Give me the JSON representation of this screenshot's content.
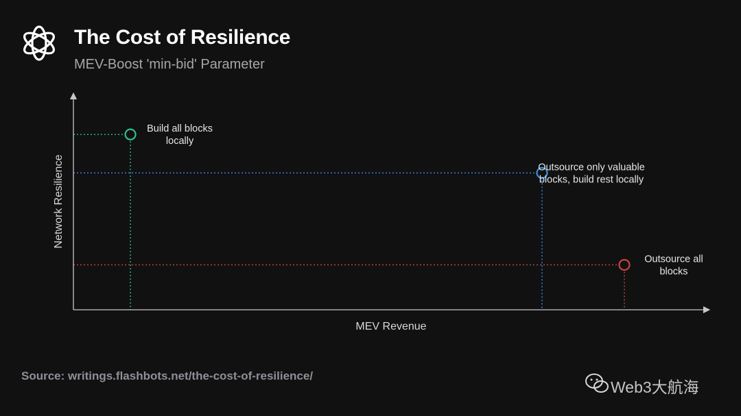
{
  "header": {
    "title": "The Cost of Resilience",
    "subtitle": "MEV-Boost 'min-bid' Parameter"
  },
  "footer": {
    "source": "Source: writings.flashbots.net/the-cost-of-resilience/",
    "watermark": "Web3大航海"
  },
  "colors": {
    "background": "#111112",
    "axis": "#c8c8cc",
    "local": "#2fbf8f",
    "partial": "#3b8fe0",
    "outsource": "#c8473f"
  },
  "chart_data": {
    "type": "scatter",
    "title": "The Cost of Resilience",
    "xlabel": "MEV Revenue",
    "ylabel": "Network Resilience",
    "xlim": [
      0,
      100
    ],
    "ylim": [
      0,
      100
    ],
    "grid": false,
    "axis_ticks": false,
    "series": [
      {
        "name": "Build all blocks locally",
        "label_lines": [
          "Build all blocks",
          "locally"
        ],
        "x": 9,
        "y": 82,
        "color": "#2fbf8f",
        "label_side": "right"
      },
      {
        "name": "Outsource only valuable blocks, build rest locally",
        "label_lines": [
          "Outsource only valuable",
          "blocks, build rest locally"
        ],
        "x": 74,
        "y": 64,
        "color": "#3b8fe0",
        "label_side": "right"
      },
      {
        "name": "Outsource all blocks",
        "label_lines": [
          "Outsource all",
          "blocks"
        ],
        "x": 87,
        "y": 21,
        "color": "#c8473f",
        "label_side": "right"
      }
    ]
  }
}
